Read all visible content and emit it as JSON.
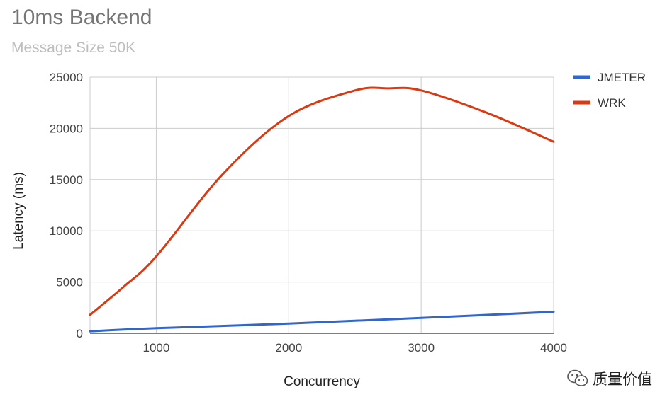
{
  "chart_data": {
    "type": "line",
    "title": "10ms Backend",
    "subtitle": "Message Size 50K",
    "xlabel": "Concurrency",
    "ylabel": "Latency (ms)",
    "xlim": [
      500,
      4000
    ],
    "ylim": [
      0,
      25000
    ],
    "x_ticks": [
      1000,
      2000,
      3000,
      4000
    ],
    "y_ticks": [
      0,
      5000,
      10000,
      15000,
      20000,
      25000
    ],
    "grid": true,
    "legend_position": "right",
    "series": [
      {
        "name": "JMETER",
        "color": "#3366cc",
        "x": [
          500,
          1000,
          2000,
          3000,
          4000
        ],
        "values": [
          200,
          500,
          950,
          1500,
          2100
        ]
      },
      {
        "name": "WRK",
        "color": "#dc3912",
        "x": [
          500,
          750,
          1000,
          1500,
          2000,
          2500,
          2750,
          3000,
          3500,
          4000
        ],
        "values": [
          1800,
          4500,
          7500,
          15500,
          21200,
          23700,
          23900,
          23700,
          21500,
          18700
        ]
      }
    ]
  },
  "watermark": {
    "text": "质量价值",
    "icon": "wechat-icon"
  }
}
